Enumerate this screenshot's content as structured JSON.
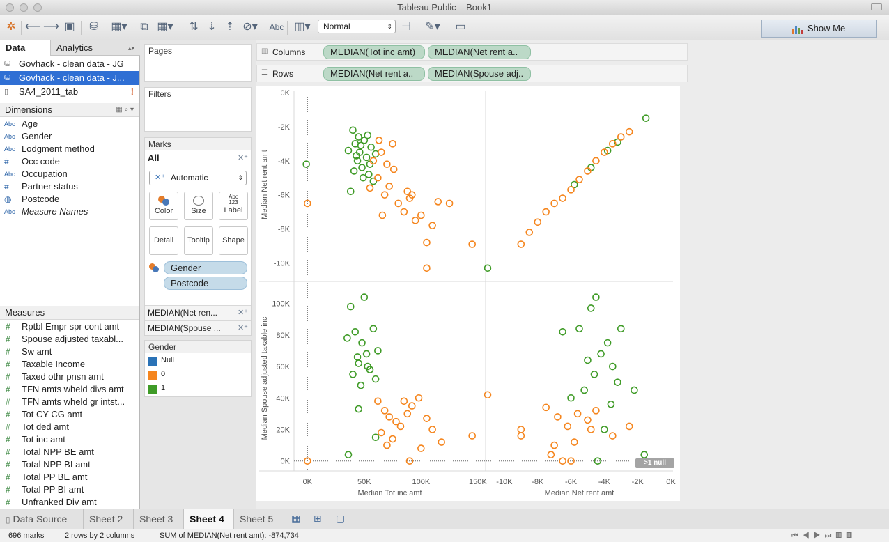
{
  "window": {
    "title": "Tableau Public – Book1"
  },
  "toolbar": {
    "zoom_value": "Normal",
    "abc_label": "Abc",
    "show_me": "Show Me"
  },
  "data_tabs": {
    "data": "Data",
    "analytics": "Analytics"
  },
  "datasources": [
    "Govhack - clean data - JG",
    "Govhack - clean data - J...",
    "SA4_2011_tab"
  ],
  "datasource_warning": "!",
  "dimensions": {
    "header": "Dimensions",
    "items": [
      {
        "icon": "Abc",
        "label": "Age"
      },
      {
        "icon": "Abc",
        "label": "Gender"
      },
      {
        "icon": "Abc",
        "label": "Lodgment method"
      },
      {
        "icon": "#",
        "label": "Occ code"
      },
      {
        "icon": "Abc",
        "label": "Occupation"
      },
      {
        "icon": "#",
        "label": "Partner status"
      },
      {
        "icon": "globe-icon",
        "label": "Postcode"
      },
      {
        "icon": "Abc",
        "label": "Measure Names"
      }
    ]
  },
  "measures": {
    "header": "Measures",
    "items": [
      "Rptbl Empr spr cont amt",
      "Spouse adjusted taxabl...",
      "Sw amt",
      "Taxable Income",
      "Taxed othr pnsn amt",
      "TFN amts wheld divs amt",
      "TFN amts wheld gr intst...",
      "Tot CY CG amt",
      "Tot ded amt",
      "Tot inc amt",
      "Total NPP BE amt",
      "Total NPP BI amt",
      "Total PP BE amt",
      "Total PP BI amt",
      "Unfranked Div amt"
    ]
  },
  "cards": {
    "pages": "Pages",
    "filters": "Filters",
    "marks": "Marks",
    "all": "All",
    "mark_type": "Automatic",
    "buttons": {
      "color": "Color",
      "size": "Size",
      "label": "Label",
      "label_icon": "Abc 123",
      "detail": "Detail",
      "tooltip": "Tooltip",
      "shape": "Shape"
    },
    "mark_pills": [
      "Gender",
      "Postcode"
    ],
    "measure_rows": [
      "MEDIAN(Net ren...",
      "MEDIAN(Spouse ..."
    ]
  },
  "legend": {
    "title": "Gender",
    "items": [
      {
        "label": "Null",
        "color": "#2a72b6"
      },
      {
        "label": "0",
        "color": "#f5851d"
      },
      {
        "label": "1",
        "color": "#3f9b27"
      }
    ]
  },
  "shelves": {
    "columns_label": "Columns",
    "rows_label": "Rows",
    "columns": [
      "MEDIAN(Tot inc amt)",
      "MEDIAN(Net rent a.."
    ],
    "rows": [
      "MEDIAN(Net rent a..",
      "MEDIAN(Spouse adj.."
    ]
  },
  "null_badge": ">1 null",
  "sheet_tabs": {
    "data_source": "Data Source",
    "sheets": [
      "Sheet 2",
      "Sheet 3",
      "Sheet 4",
      "Sheet 5"
    ],
    "active": "Sheet 4"
  },
  "status": {
    "marks": "696 marks",
    "layout": "2 rows by 2 columns",
    "sum": "SUM of MEDIAN(Net rent amt): -874,734"
  },
  "chart_data": {
    "type": "scatter",
    "layout": "2 rows by 2 columns",
    "columns": [
      {
        "xlabel": "Median Tot inc amt",
        "xticks": [
          "0K",
          "50K",
          "100K",
          "150K"
        ],
        "xlim": [
          -10000,
          155000
        ]
      },
      {
        "xlabel": "Median Net rent amt",
        "xticks": [
          "-10K",
          "-8K",
          "-6K",
          "-4K",
          "-2K",
          "0K"
        ],
        "xlim": [
          -11000,
          0
        ]
      }
    ],
    "rows": [
      {
        "ylabel": "Median Net rent amt",
        "yticks": [
          "0K",
          "-2K",
          "-4K",
          "-6K",
          "-8K",
          "-10K"
        ],
        "ylim": [
          -10800,
          0
        ]
      },
      {
        "ylabel": "Median Spouse adjusted taxable inc",
        "yticks": [
          "100K",
          "80K",
          "60K",
          "40K",
          "20K",
          "0K"
        ],
        "ylim": [
          -5000,
          110000
        ]
      }
    ],
    "series": [
      {
        "name": "0",
        "color": "#f5851d"
      },
      {
        "name": "1",
        "color": "#3f9b27"
      }
    ],
    "marks": 696,
    "points": {
      "r0c0": {
        "1": [
          [
            40000,
            -2200
          ],
          [
            42000,
            -3000
          ],
          [
            44000,
            -4000
          ],
          [
            45000,
            -2600
          ],
          [
            46000,
            -3500
          ],
          [
            48000,
            -4400
          ],
          [
            50000,
            -2800
          ],
          [
            52000,
            -3800
          ],
          [
            54000,
            -4800
          ],
          [
            56000,
            -3200
          ],
          [
            58000,
            -5200
          ],
          [
            38000,
            -5800
          ],
          [
            36000,
            -3400
          ],
          [
            41000,
            -4600
          ],
          [
            47000,
            -3100
          ],
          [
            53000,
            -2500
          ],
          [
            49000,
            -5000
          ],
          [
            43000,
            -3700
          ],
          [
            55000,
            -4200
          ],
          [
            60000,
            -3600
          ],
          [
            -1000,
            -4200
          ]
        ],
        "0": [
          [
            58000,
            -4000
          ],
          [
            62000,
            -5000
          ],
          [
            65000,
            -3500
          ],
          [
            68000,
            -6000
          ],
          [
            72000,
            -5500
          ],
          [
            76000,
            -4500
          ],
          [
            80000,
            -6500
          ],
          [
            85000,
            -7000
          ],
          [
            90000,
            -6200
          ],
          [
            95000,
            -7500
          ],
          [
            100000,
            -7200
          ],
          [
            105000,
            -8800
          ],
          [
            110000,
            -7800
          ],
          [
            115000,
            -6400
          ],
          [
            125000,
            -6500
          ],
          [
            145000,
            -8900
          ],
          [
            105000,
            -10300
          ],
          [
            63000,
            -2800
          ],
          [
            70000,
            -4200
          ],
          [
            75000,
            -3000
          ],
          [
            88000,
            -5800
          ],
          [
            92000,
            -6000
          ],
          [
            55000,
            -5600
          ],
          [
            66000,
            -7200
          ],
          [
            0,
            -6500
          ]
        ]
      },
      "r0c1": {
        "0": [
          [
            -9000,
            -8900
          ],
          [
            -8500,
            -8200
          ],
          [
            -8000,
            -7600
          ],
          [
            -7500,
            -7000
          ],
          [
            -7000,
            -6500
          ],
          [
            -6500,
            -6200
          ],
          [
            -6000,
            -5700
          ],
          [
            -5500,
            -5100
          ],
          [
            -5000,
            -4600
          ],
          [
            -4500,
            -4000
          ],
          [
            -4000,
            -3500
          ],
          [
            -3500,
            -3000
          ],
          [
            -3000,
            -2600
          ],
          [
            -2500,
            -2300
          ]
        ],
        "1": [
          [
            -11000,
            -10300
          ],
          [
            -5800,
            -5400
          ],
          [
            -4800,
            -4400
          ],
          [
            -3800,
            -3400
          ],
          [
            -3200,
            -2900
          ],
          [
            -1500,
            -1500
          ]
        ]
      },
      "r1c0": {
        "1": [
          [
            38000,
            98000
          ],
          [
            50000,
            104000
          ],
          [
            42000,
            82000
          ],
          [
            48000,
            75000
          ],
          [
            52000,
            68000
          ],
          [
            45000,
            62000
          ],
          [
            55000,
            58000
          ],
          [
            40000,
            55000
          ],
          [
            60000,
            52000
          ],
          [
            47000,
            48000
          ],
          [
            58000,
            84000
          ],
          [
            35000,
            78000
          ],
          [
            62000,
            70000
          ],
          [
            44000,
            66000
          ],
          [
            53000,
            60000
          ],
          [
            36000,
            4000
          ],
          [
            60000,
            15000
          ],
          [
            45000,
            33000
          ]
        ],
        "0": [
          [
            62000,
            38000
          ],
          [
            68000,
            32000
          ],
          [
            72000,
            28000
          ],
          [
            78000,
            25000
          ],
          [
            82000,
            22000
          ],
          [
            88000,
            30000
          ],
          [
            92000,
            35000
          ],
          [
            98000,
            40000
          ],
          [
            105000,
            27000
          ],
          [
            110000,
            20000
          ],
          [
            118000,
            12000
          ],
          [
            145000,
            16000
          ],
          [
            100000,
            8000
          ],
          [
            90000,
            0
          ],
          [
            0,
            0
          ],
          [
            65000,
            18000
          ],
          [
            75000,
            14000
          ],
          [
            85000,
            38000
          ],
          [
            70000,
            10000
          ]
        ]
      },
      "r1c1": {
        "1": [
          [
            -4500,
            104000
          ],
          [
            -4800,
            97000
          ],
          [
            -3000,
            84000
          ],
          [
            -5500,
            84000
          ],
          [
            -6500,
            82000
          ],
          [
            -3800,
            75000
          ],
          [
            -4200,
            68000
          ],
          [
            -5000,
            64000
          ],
          [
            -3500,
            60000
          ],
          [
            -4600,
            55000
          ],
          [
            -3200,
            50000
          ],
          [
            -5200,
            45000
          ],
          [
            -6000,
            40000
          ],
          [
            -2200,
            45000
          ],
          [
            -3600,
            36000
          ],
          [
            -4000,
            20000
          ],
          [
            -4400,
            0
          ],
          [
            -1600,
            4000
          ]
        ],
        "0": [
          [
            -11000,
            42000
          ],
          [
            -9000,
            20000
          ],
          [
            -7500,
            34000
          ],
          [
            -6800,
            28000
          ],
          [
            -6200,
            22000
          ],
          [
            -5600,
            30000
          ],
          [
            -5000,
            26000
          ],
          [
            -4500,
            32000
          ],
          [
            -3500,
            16000
          ],
          [
            -2500,
            22000
          ],
          [
            -7000,
            10000
          ],
          [
            -6000,
            0
          ],
          [
            -6500,
            0
          ],
          [
            -7200,
            4000
          ],
          [
            -5800,
            12000
          ],
          [
            -9000,
            16000
          ],
          [
            -4800,
            20000
          ]
        ]
      }
    }
  }
}
